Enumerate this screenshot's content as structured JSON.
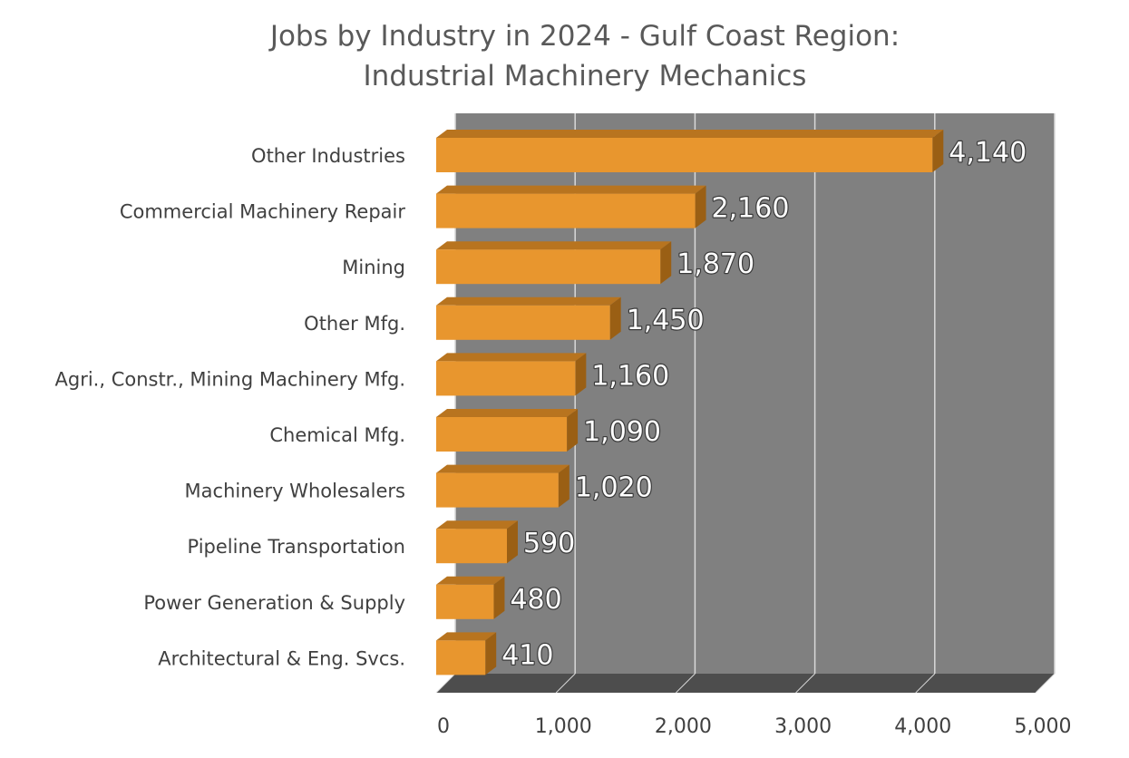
{
  "chart_data": {
    "type": "bar",
    "orientation": "horizontal",
    "title": [
      "Jobs by Industry in 2024 - Gulf Coast Region:",
      "Industrial Machinery Mechanics"
    ],
    "categories": [
      "Other Industries",
      "Commercial Machinery Repair",
      "Mining",
      "Other Mfg.",
      "Agri., Constr., Mining Machinery Mfg.",
      "Chemical Mfg.",
      "Machinery Wholesalers",
      "Pipeline Transportation",
      "Power Generation & Supply",
      "Architectural & Eng. Svcs."
    ],
    "values": [
      4140,
      2160,
      1870,
      1450,
      1160,
      1090,
      1020,
      590,
      480,
      410
    ],
    "data_labels": [
      "4,140",
      "2,160",
      "1,870",
      "1,450",
      "1,160",
      "1,090",
      "1,020",
      "590",
      "480",
      "410"
    ],
    "x_ticks": [
      0,
      1000,
      2000,
      3000,
      4000,
      5000
    ],
    "x_tick_labels": [
      "0",
      "1,000",
      "2,000",
      "3,000",
      "4,000",
      "5,000"
    ],
    "xlim": [
      0,
      5000
    ],
    "grid": true,
    "legend": "none",
    "colors": {
      "bar_front": "#E8962E",
      "bar_top": "#B8741F",
      "bar_side": "#9A5F14",
      "plot_back": "#808080",
      "plot_floor": "#4D4D4D",
      "gridline": "#D9D9D9"
    }
  }
}
